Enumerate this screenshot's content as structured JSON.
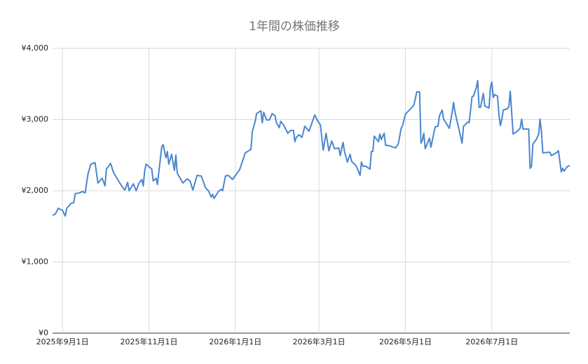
{
  "chart_data": {
    "type": "line",
    "title": "1年間の株価推移",
    "color": "#4a86cf",
    "grid": true,
    "x": [
      "2025-08-25",
      "2025-08-27",
      "2025-08-29",
      "2025-09-01",
      "2025-09-03",
      "2025-09-04",
      "2025-09-07",
      "2025-09-09",
      "2025-09-10",
      "2025-09-13",
      "2025-09-15",
      "2025-09-17",
      "2025-09-19",
      "2025-09-21",
      "2025-09-24",
      "2025-09-26",
      "2025-09-29",
      "2025-10-01",
      "2025-10-02",
      "2025-10-05",
      "2025-10-07",
      "2025-10-10",
      "2025-10-13",
      "2025-10-15",
      "2025-10-17",
      "2025-10-18",
      "2025-10-21",
      "2025-10-23",
      "2025-10-25",
      "2025-10-27",
      "2025-10-28",
      "2025-10-29",
      "2025-10-30",
      "2025-11-03",
      "2025-11-04",
      "2025-11-06",
      "2025-11-07",
      "2025-11-10",
      "2025-11-11",
      "2025-11-13",
      "2025-11-14",
      "2025-11-15",
      "2025-11-17",
      "2025-11-19",
      "2025-11-20",
      "2025-11-21",
      "2025-11-25",
      "2025-11-28",
      "2025-11-30",
      "2025-12-02",
      "2025-12-05",
      "2025-12-08",
      "2025-12-11",
      "2025-12-13",
      "2025-12-15",
      "2025-12-16",
      "2025-12-17",
      "2025-12-20",
      "2025-12-22",
      "2025-12-23",
      "2025-12-25",
      "2025-12-27",
      "2025-12-30",
      "2026-01-04",
      "2026-01-06",
      "2026-01-08",
      "2026-01-12",
      "2026-01-13",
      "2026-01-15",
      "2026-01-16",
      "2026-01-19",
      "2026-01-20",
      "2026-01-21",
      "2026-01-23",
      "2026-01-25",
      "2026-01-27",
      "2026-01-29",
      "2026-01-30",
      "2026-02-01",
      "2026-02-02",
      "2026-02-04",
      "2026-02-07",
      "2026-02-09",
      "2026-02-11",
      "2026-02-12",
      "2026-02-13",
      "2026-02-15",
      "2026-02-17",
      "2026-02-19",
      "2026-02-22",
      "2026-02-26",
      "2026-02-28",
      "2026-03-02",
      "2026-03-04",
      "2026-03-06",
      "2026-03-08",
      "2026-03-10",
      "2026-03-12",
      "2026-03-15",
      "2026-03-16",
      "2026-03-18",
      "2026-03-19",
      "2026-03-21",
      "2026-03-23",
      "2026-03-24",
      "2026-03-27",
      "2026-03-28",
      "2026-03-30",
      "2026-03-31",
      "2026-04-01",
      "2026-04-03",
      "2026-04-06",
      "2026-04-07",
      "2026-04-08",
      "2026-04-09",
      "2026-04-12",
      "2026-04-13",
      "2026-04-14",
      "2026-04-16",
      "2026-04-17",
      "2026-04-20",
      "2026-04-24",
      "2026-04-26",
      "2026-04-28",
      "2026-04-29",
      "2026-05-01",
      "2026-05-07",
      "2026-05-09",
      "2026-05-11",
      "2026-05-12",
      "2026-05-13",
      "2026-05-14",
      "2026-05-15",
      "2026-05-18",
      "2026-05-19",
      "2026-05-20",
      "2026-05-22",
      "2026-05-24",
      "2026-05-25",
      "2026-05-27",
      "2026-05-28",
      "2026-06-01",
      "2026-06-03",
      "2026-06-04",
      "2026-06-05",
      "2026-06-08",
      "2026-06-10",
      "2026-06-11",
      "2026-06-14",
      "2026-06-15",
      "2026-06-17",
      "2026-06-18",
      "2026-06-20",
      "2026-06-21",
      "2026-06-22",
      "2026-06-23",
      "2026-06-25",
      "2026-06-26",
      "2026-06-29",
      "2026-06-30",
      "2026-07-01",
      "2026-07-02",
      "2026-07-03",
      "2026-07-05",
      "2026-07-06",
      "2026-07-07",
      "2026-07-08",
      "2026-07-09",
      "2026-07-12",
      "2026-07-13",
      "2026-07-14",
      "2026-07-16",
      "2026-07-19",
      "2026-07-21",
      "2026-07-22",
      "2026-07-23",
      "2026-07-27",
      "2026-07-28",
      "2026-07-29",
      "2026-07-30",
      "2026-08-01",
      "2026-08-03",
      "2026-08-04",
      "2026-08-05",
      "2026-08-06",
      "2026-08-11",
      "2026-08-12",
      "2026-08-16",
      "2026-08-17",
      "2026-08-19",
      "2026-08-20",
      "2026-08-21",
      "2026-08-23",
      "2026-08-25"
    ],
    "values": [
      1655,
      1675,
      1754,
      1724,
      1645,
      1754,
      1823,
      1833,
      1960,
      1970,
      1990,
      1970,
      2236,
      2374,
      2394,
      2108,
      2177,
      2069,
      2305,
      2384,
      2256,
      2158,
      2059,
      2010,
      2118,
      2000,
      2098,
      2000,
      2108,
      2158,
      2069,
      2276,
      2374,
      2305,
      2138,
      2177,
      2089,
      2611,
      2650,
      2463,
      2552,
      2374,
      2512,
      2286,
      2502,
      2246,
      2108,
      2167,
      2138,
      2010,
      2217,
      2207,
      2039,
      2000,
      1911,
      1950,
      1892,
      1990,
      2020,
      2000,
      2207,
      2217,
      2158,
      2296,
      2414,
      2532,
      2581,
      2837,
      2975,
      3084,
      3123,
      2956,
      3103,
      2995,
      2995,
      3084,
      3054,
      2956,
      2887,
      2975,
      2926,
      2808,
      2847,
      2847,
      2690,
      2749,
      2788,
      2749,
      2906,
      2837,
      3064,
      2985,
      2926,
      2571,
      2808,
      2562,
      2700,
      2591,
      2601,
      2493,
      2680,
      2552,
      2404,
      2512,
      2414,
      2355,
      2315,
      2217,
      2404,
      2345,
      2345,
      2305,
      2552,
      2552,
      2768,
      2690,
      2798,
      2719,
      2808,
      2640,
      2631,
      2601,
      2660,
      2877,
      2916,
      3074,
      3202,
      3389,
      3389,
      2670,
      2709,
      2808,
      2591,
      2739,
      2611,
      2709,
      2897,
      2906,
      3054,
      3133,
      3005,
      2877,
      3103,
      3241,
      3103,
      2847,
      2670,
      2906,
      2966,
      2956,
      3320,
      3330,
      3448,
      3547,
      3172,
      3172,
      3369,
      3192,
      3162,
      3448,
      3527,
      3310,
      3350,
      3330,
      3074,
      2916,
      2995,
      3133,
      3153,
      3182,
      3399,
      2798,
      2837,
      2877,
      3005,
      2867,
      2867,
      2315,
      2345,
      2660,
      2709,
      2788,
      3005,
      2828,
      2532,
      2542,
      2493,
      2542,
      2562,
      2266,
      2315,
      2276,
      2335,
      2355
    ],
    "xlim": [
      "2025-08-25",
      "2026-08-25"
    ],
    "xticks": [
      {
        "value": "2025-09-01",
        "label": "2025年9月1日"
      },
      {
        "value": "2025-11-01",
        "label": "2025年11月1日"
      },
      {
        "value": "2026-01-01",
        "label": "2026年1月1日"
      },
      {
        "value": "2026-03-01",
        "label": "2026年3月1日"
      },
      {
        "value": "2026-05-01",
        "label": "2026年5月1日"
      },
      {
        "value": "2026-07-01",
        "label": "2026年7月1日"
      }
    ],
    "ylim": [
      0,
      4000
    ],
    "yticks": [
      {
        "value": 0,
        "label": "¥0"
      },
      {
        "value": 1000,
        "label": "¥1,000"
      },
      {
        "value": 2000,
        "label": "¥2,000"
      },
      {
        "value": 3000,
        "label": "¥3,000"
      },
      {
        "value": 4000,
        "label": "¥4,000"
      }
    ]
  }
}
